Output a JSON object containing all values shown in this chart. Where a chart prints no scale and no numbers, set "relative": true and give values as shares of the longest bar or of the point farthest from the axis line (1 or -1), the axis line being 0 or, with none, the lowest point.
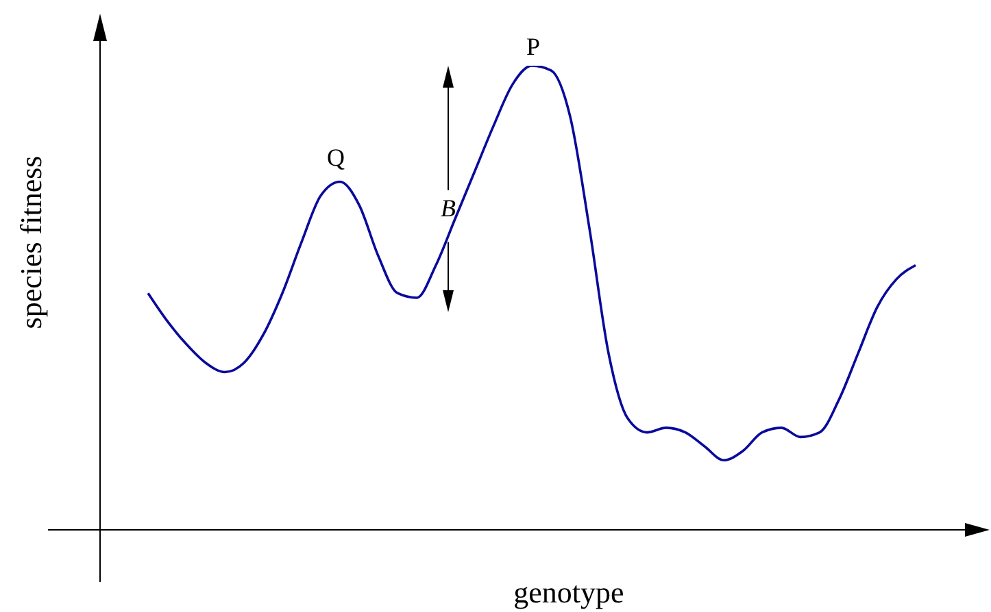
{
  "chart_data": {
    "type": "line",
    "relative": true,
    "xlabel": "genotype",
    "ylabel": "species fitness",
    "color": "#0a0a9c",
    "marker": "none",
    "categories": [
      null,
      null,
      null,
      null,
      null,
      null,
      null,
      null,
      null,
      null,
      null,
      null,
      null,
      null,
      null,
      null,
      null,
      null,
      null,
      null,
      null,
      null,
      null,
      null,
      null,
      null,
      null,
      null,
      null,
      null,
      null,
      null,
      null,
      null,
      null,
      null,
      null,
      null,
      null,
      null,
      null
    ],
    "values": [
      0.51,
      0.45,
      0.4,
      0.36,
      0.34,
      0.36,
      0.42,
      0.51,
      0.62,
      0.72,
      0.75,
      0.7,
      0.59,
      0.51,
      0.5,
      0.57,
      0.67,
      0.77,
      0.87,
      0.96,
      1.0,
      0.99,
      0.89,
      0.65,
      0.38,
      0.24,
      0.21,
      0.22,
      0.21,
      0.18,
      0.15,
      0.17,
      0.21,
      0.22,
      0.2,
      0.21,
      0.28,
      0.38,
      0.48,
      0.54,
      0.57
    ],
    "annotations": [
      "Q",
      "P",
      "B"
    ]
  }
}
